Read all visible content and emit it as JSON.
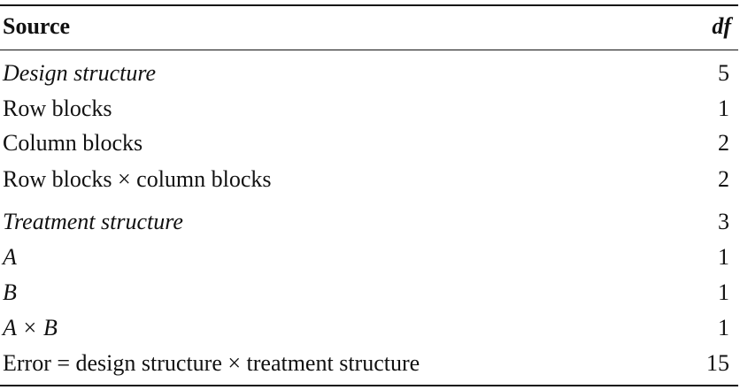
{
  "table": {
    "header": {
      "source": "Source",
      "df": "df"
    },
    "rows": [
      {
        "source": "Design structure",
        "df": "5"
      },
      {
        "source": "Row blocks",
        "df": "1"
      },
      {
        "source": "Column blocks",
        "df": "2"
      },
      {
        "source": "Row blocks × column blocks",
        "df": "2"
      },
      {
        "source": "Treatment structure",
        "df": "3"
      },
      {
        "source": "A",
        "df": "1"
      },
      {
        "source": "B",
        "df": "1"
      },
      {
        "source": "A × B",
        "df": "1"
      },
      {
        "source": "Error = design structure × treatment structure",
        "df": "15"
      }
    ]
  }
}
